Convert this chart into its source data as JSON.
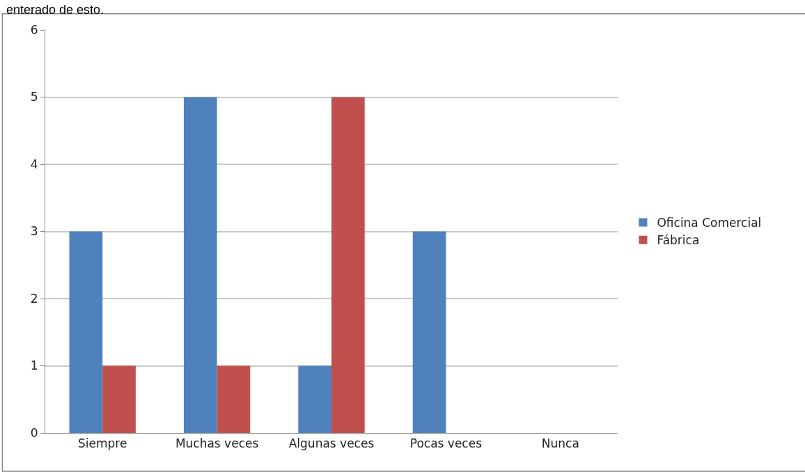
{
  "chart_data": {
    "type": "bar",
    "categories": [
      "Siempre",
      "Muchas veces",
      "Algunas veces",
      "Pocas veces",
      "Nunca"
    ],
    "series": [
      {
        "name": "Oficina Comercial",
        "color": "#4f81bd",
        "values": [
          3,
          5,
          1,
          3,
          0
        ]
      },
      {
        "name": "Fábrica",
        "color": "#c0504d",
        "values": [
          1,
          1,
          5,
          0,
          0
        ]
      }
    ],
    "ylim": [
      0,
      6
    ],
    "yticks": [
      0,
      1,
      2,
      3,
      4,
      5,
      6
    ],
    "grid": "y",
    "legend": "right",
    "annotations": [
      "enterado de esto."
    ]
  }
}
